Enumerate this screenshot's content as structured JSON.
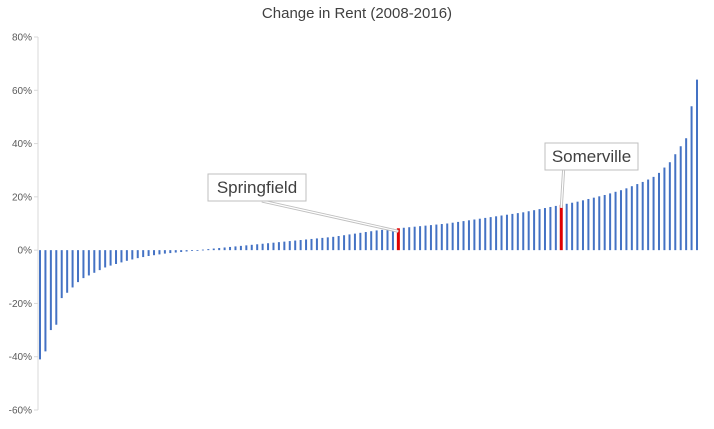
{
  "chart_data": {
    "type": "bar",
    "title": "Change in Rent (2008-2016)",
    "xlabel": "",
    "ylabel": "",
    "ylim": [
      -0.6,
      0.8
    ],
    "yticks": [
      {
        "value": 0.8,
        "label": "80%"
      },
      {
        "value": 0.6,
        "label": "60%"
      },
      {
        "value": 0.4,
        "label": "40%"
      },
      {
        "value": 0.2,
        "label": "20%"
      },
      {
        "value": 0.0,
        "label": "0%"
      },
      {
        "value": -0.2,
        "label": "-20%"
      },
      {
        "value": -0.4,
        "label": "-40%"
      },
      {
        "value": -0.6,
        "label": "-60%"
      }
    ],
    "bar_color": "#4472C4",
    "highlight_color": "#E00000",
    "values": [
      -0.41,
      -0.38,
      -0.3,
      -0.28,
      -0.18,
      -0.16,
      -0.14,
      -0.12,
      -0.105,
      -0.095,
      -0.085,
      -0.075,
      -0.065,
      -0.058,
      -0.052,
      -0.046,
      -0.04,
      -0.035,
      -0.03,
      -0.026,
      -0.022,
      -0.019,
      -0.016,
      -0.013,
      -0.011,
      -0.009,
      -0.007,
      -0.005,
      -0.003,
      -0.001,
      0.002,
      0.004,
      0.006,
      0.008,
      0.01,
      0.012,
      0.014,
      0.016,
      0.018,
      0.02,
      0.022,
      0.024,
      0.026,
      0.028,
      0.03,
      0.032,
      0.034,
      0.036,
      0.038,
      0.04,
      0.042,
      0.044,
      0.046,
      0.048,
      0.05,
      0.053,
      0.056,
      0.059,
      0.062,
      0.065,
      0.068,
      0.071,
      0.074,
      0.076,
      0.078,
      0.08,
      0.082,
      0.084,
      0.086,
      0.088,
      0.09,
      0.092,
      0.094,
      0.096,
      0.098,
      0.1,
      0.103,
      0.106,
      0.109,
      0.112,
      0.115,
      0.118,
      0.121,
      0.124,
      0.127,
      0.13,
      0.133,
      0.136,
      0.139,
      0.142,
      0.146,
      0.15,
      0.154,
      0.158,
      0.162,
      0.166,
      0.17,
      0.174,
      0.178,
      0.182,
      0.187,
      0.192,
      0.197,
      0.202,
      0.207,
      0.213,
      0.219,
      0.225,
      0.232,
      0.24,
      0.248,
      0.256,
      0.265,
      0.275,
      0.29,
      0.31,
      0.33,
      0.36,
      0.39,
      0.42,
      0.54,
      0.64
    ],
    "highlights": [
      {
        "index": 66,
        "label": "Springfield"
      },
      {
        "index": 96,
        "label": "Somerville"
      }
    ],
    "annotations": [
      "Springfield",
      "Somerville"
    ]
  }
}
